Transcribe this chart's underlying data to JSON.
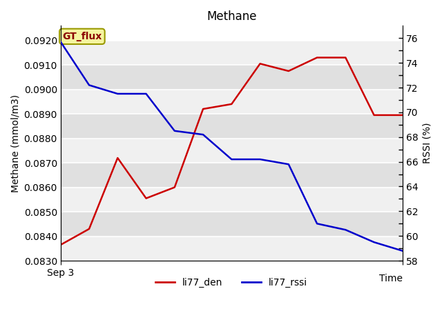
{
  "title": "Methane",
  "xlabel": "Time",
  "ylabel_left": "Methane (mmol/m3)",
  "ylabel_right": "RSSI (%)",
  "annotation_text": "GT_flux",
  "x_tick_label": "Sep 3",
  "ylim_left": [
    0.083,
    0.0926
  ],
  "ylim_right": [
    58,
    77
  ],
  "li77_den_x": [
    0,
    1,
    2,
    3,
    4,
    5,
    6,
    7,
    8,
    9,
    10,
    11,
    12
  ],
  "li77_den_y": [
    0.08365,
    0.0843,
    0.0872,
    0.08555,
    0.086,
    0.0892,
    0.0894,
    0.09105,
    0.09075,
    0.0913,
    0.0913,
    0.08895,
    0.08895
  ],
  "li77_rssi_x": [
    0,
    1,
    2,
    3,
    4,
    5,
    6,
    7,
    8,
    9,
    10,
    11,
    12
  ],
  "li77_rssi_y": [
    75.7,
    72.2,
    71.5,
    71.5,
    68.5,
    68.2,
    66.2,
    66.2,
    65.8,
    61.0,
    60.5,
    59.5,
    58.8
  ],
  "color_den": "#cc0000",
  "color_rssi": "#0000cc",
  "bg_color_light": "#f0f0f0",
  "bg_color_dark": "#e0e0e0",
  "legend_den": "li77_den",
  "legend_rssi": "li77_rssi",
  "left_yticks": [
    0.083,
    0.084,
    0.085,
    0.086,
    0.087,
    0.088,
    0.089,
    0.09,
    0.091,
    0.092
  ],
  "right_yticks_labeled": [
    58,
    60,
    62,
    64,
    66,
    68,
    70,
    72,
    74,
    76
  ],
  "right_yticks_minor": [
    59,
    61,
    63,
    65,
    67,
    69,
    71,
    73,
    75
  ]
}
